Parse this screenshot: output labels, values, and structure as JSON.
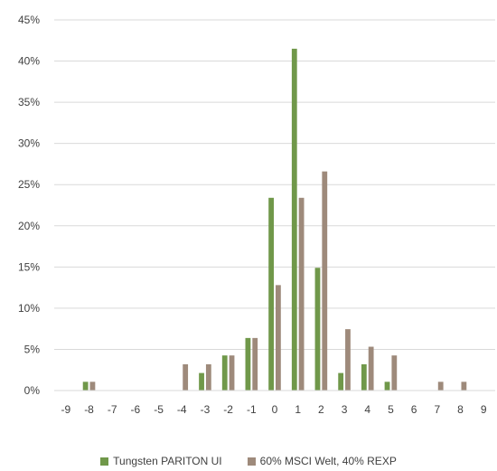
{
  "chart_data": {
    "type": "bar",
    "categories": [
      "-9",
      "-8",
      "-7",
      "-6",
      "-5",
      "-4",
      "-3",
      "-2",
      "-1",
      "0",
      "1",
      "2",
      "3",
      "4",
      "5",
      "6",
      "7",
      "8",
      "9"
    ],
    "series": [
      {
        "name": "Tungsten PARITON UI",
        "color": "#70984a",
        "values": [
          0,
          1.06,
          0,
          0,
          0,
          0,
          2.13,
          4.26,
          6.38,
          23.4,
          41.5,
          14.9,
          2.13,
          3.19,
          1.06,
          0,
          0,
          0,
          0
        ]
      },
      {
        "name": "60% MSCI Welt, 40% REXP",
        "color": "#9e8a7b",
        "values": [
          0,
          1.06,
          0,
          0,
          0,
          3.19,
          3.19,
          4.26,
          6.38,
          12.8,
          23.4,
          26.6,
          7.45,
          5.32,
          4.26,
          0,
          1.06,
          1.06,
          0
        ]
      }
    ],
    "yticks": [
      "0%",
      "5%",
      "10%",
      "15%",
      "20%",
      "25%",
      "30%",
      "35%",
      "40%",
      "45%"
    ],
    "ylim": [
      0,
      45
    ],
    "grid": true,
    "legend_position": "bottom",
    "title": "",
    "xlabel": "",
    "ylabel": ""
  }
}
